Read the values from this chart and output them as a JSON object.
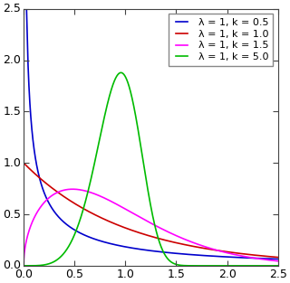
{
  "title": "",
  "xlim": [
    0.0,
    2.5
  ],
  "ylim": [
    0.0,
    2.5
  ],
  "xlabel": "",
  "ylabel": "",
  "xticks": [
    0.0,
    0.5,
    1.0,
    1.5,
    2.0,
    2.5
  ],
  "yticks": [
    0.0,
    0.5,
    1.0,
    1.5,
    2.0,
    2.5
  ],
  "series": [
    {
      "lambda": 1,
      "k": 0.5,
      "color": "#0000cc",
      "label": "λ = 1, k = 0.5"
    },
    {
      "lambda": 1,
      "k": 1.0,
      "color": "#cc0000",
      "label": "λ = 1, k = 1.0"
    },
    {
      "lambda": 1,
      "k": 1.5,
      "color": "#ff00ff",
      "label": "λ = 1, k = 1.5"
    },
    {
      "lambda": 1,
      "k": 5.0,
      "color": "#00bb00",
      "label": "λ = 1, k = 5.0"
    }
  ],
  "figsize": [
    3.2,
    3.13
  ],
  "dpi": 100
}
